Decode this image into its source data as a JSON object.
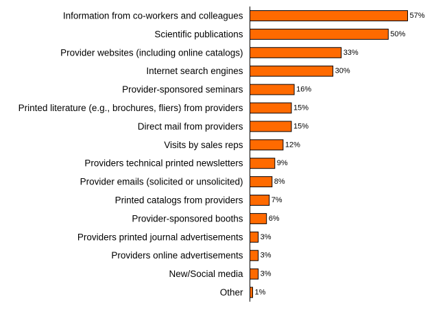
{
  "chart_data": {
    "type": "bar",
    "orientation": "horizontal",
    "title": "",
    "xlabel": "",
    "ylabel": "",
    "value_suffix": "%",
    "xlim": [
      0,
      60
    ],
    "grid": false,
    "legend": "none",
    "bar_color": "#ff6a00",
    "bar_edge_color": "#000000",
    "categories": [
      "Information from co-workers and colleagues",
      "Scientific publications",
      "Provider websites (including online catalogs)",
      "Internet search engines",
      "Provider-sponsored seminars",
      "Printed literature (e.g., brochures, fliers) from providers",
      "Direct mail from providers",
      "Visits by sales reps",
      "Providers technical printed newsletters",
      "Provider emails (solicited or unsolicited)",
      "Printed catalogs from providers",
      "Provider-sponsored booths",
      "Providers printed journal advertisements",
      "Providers online advertisements",
      "New/Social media",
      "Other"
    ],
    "values": [
      57,
      50,
      33,
      30,
      16,
      15,
      15,
      12,
      9,
      8,
      7,
      6,
      3,
      3,
      3,
      1
    ]
  }
}
